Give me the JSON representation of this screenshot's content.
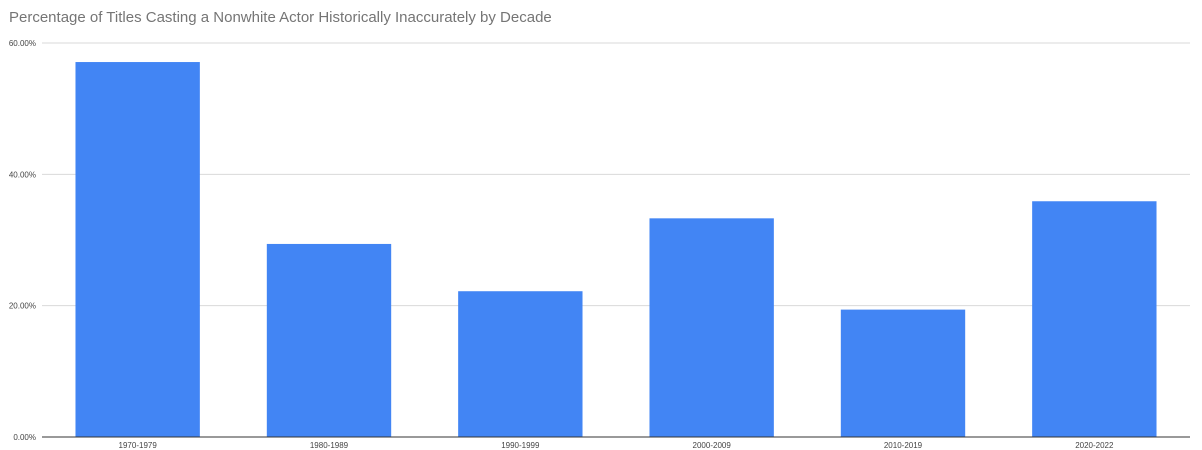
{
  "chart_data": {
    "type": "bar",
    "title": "Percentage of Titles Casting a Nonwhite Actor Historically Inaccurately by Decade",
    "xlabel": "",
    "ylabel": "",
    "categories": [
      "1970-1979",
      "1980-1989",
      "1990-1999",
      "2000-2009",
      "2010-2019",
      "2020-2022"
    ],
    "values": [
      57.1,
      29.4,
      22.2,
      33.3,
      19.4,
      35.9
    ],
    "value_format": "percent",
    "ylim": [
      0,
      60
    ],
    "yticks": [
      0,
      20,
      40,
      60
    ],
    "ytick_labels": [
      "0.00%",
      "20.00%",
      "40.00%",
      "60.00%"
    ],
    "grid": true,
    "legend": "none",
    "bar_color": "#4285f4"
  }
}
